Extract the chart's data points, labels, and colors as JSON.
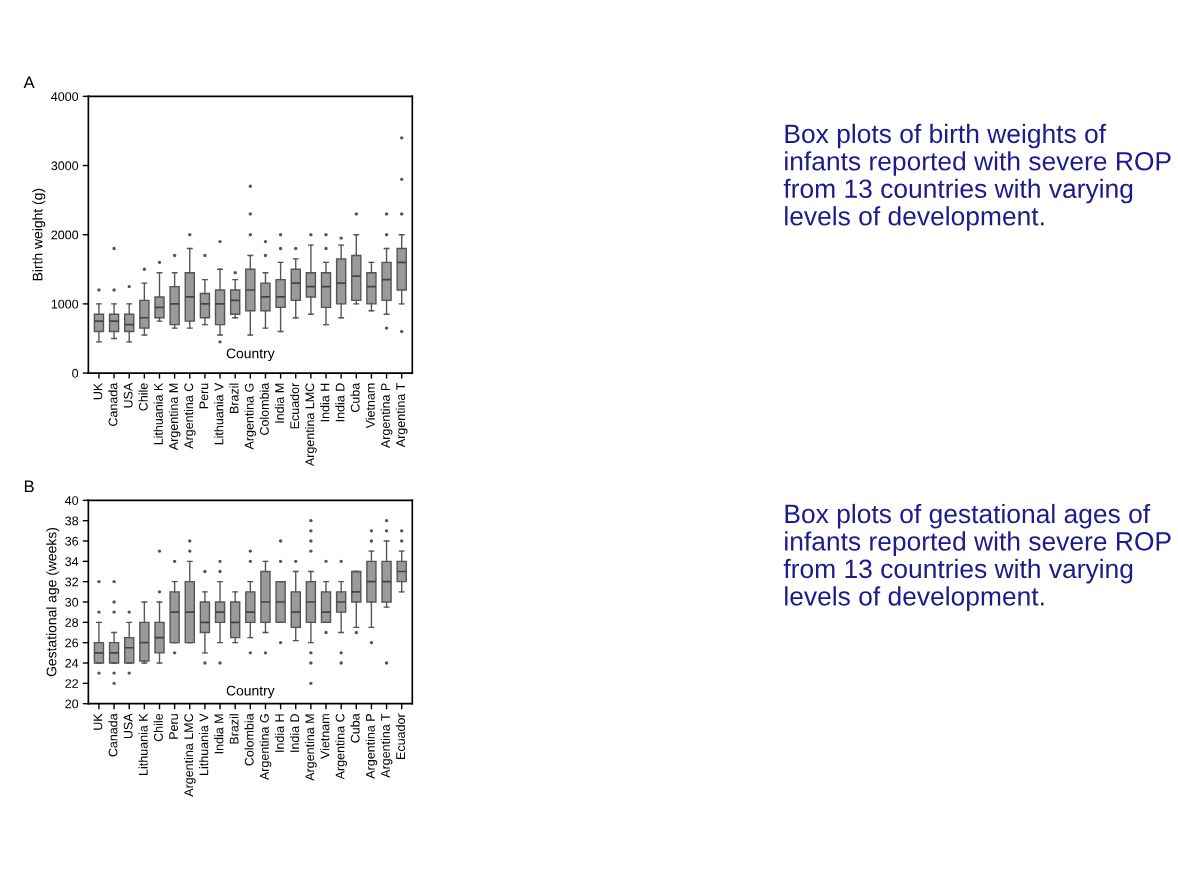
{
  "chart_data": [
    {
      "type": "box",
      "title": "A",
      "xlabel": "Country",
      "ylabel": "Birth weight (g)",
      "ylim": [
        0,
        4000
      ],
      "yticks": [
        0,
        1000,
        2000,
        3000,
        4000
      ],
      "categories": [
        "UK",
        "Canada",
        "USA",
        "Chile",
        "Lithuania K",
        "Argentina M",
        "Argentina C",
        "Peru",
        "Lithuania V",
        "Brazil",
        "Argentina G",
        "Colombia",
        "India M",
        "Ecuador",
        "Argentina LMC",
        "India H",
        "India D",
        "Cuba",
        "Vietnam",
        "Argentina P",
        "Argentina T"
      ],
      "series": [
        {
          "color": "#9a9a9a",
          "boxes": [
            {
              "low": 450,
              "q1": 600,
              "median": 750,
              "q3": 850,
              "high": 1000,
              "outliers": [
                1200
              ]
            },
            {
              "low": 500,
              "q1": 600,
              "median": 750,
              "q3": 850,
              "high": 1000,
              "outliers": [
                1200,
                1800
              ]
            },
            {
              "low": 450,
              "q1": 600,
              "median": 700,
              "q3": 850,
              "high": 1000,
              "outliers": [
                1250
              ]
            },
            {
              "low": 550,
              "q1": 650,
              "median": 800,
              "q3": 1050,
              "high": 1300,
              "outliers": [
                1500
              ]
            },
            {
              "low": 750,
              "q1": 800,
              "median": 950,
              "q3": 1100,
              "high": 1450,
              "outliers": [
                1600
              ]
            },
            {
              "low": 650,
              "q1": 700,
              "median": 1000,
              "q3": 1250,
              "high": 1450,
              "outliers": [
                1700
              ]
            },
            {
              "low": 650,
              "q1": 750,
              "median": 1100,
              "q3": 1450,
              "high": 1800,
              "outliers": [
                2000
              ]
            },
            {
              "low": 700,
              "q1": 800,
              "median": 1000,
              "q3": 1150,
              "high": 1350,
              "outliers": [
                1700
              ]
            },
            {
              "low": 550,
              "q1": 700,
              "median": 1000,
              "q3": 1200,
              "high": 1500,
              "outliers": [
                450,
                1900
              ]
            },
            {
              "low": 800,
              "q1": 850,
              "median": 1050,
              "q3": 1200,
              "high": 1350,
              "outliers": [
                1450
              ]
            },
            {
              "low": 550,
              "q1": 900,
              "median": 1200,
              "q3": 1500,
              "high": 1700,
              "outliers": [
                2000,
                2300,
                2700
              ]
            },
            {
              "low": 650,
              "q1": 900,
              "median": 1100,
              "q3": 1300,
              "high": 1450,
              "outliers": [
                1700,
                1900
              ]
            },
            {
              "low": 600,
              "q1": 950,
              "median": 1100,
              "q3": 1350,
              "high": 1600,
              "outliers": [
                1800,
                2000
              ]
            },
            {
              "low": 800,
              "q1": 1050,
              "median": 1300,
              "q3": 1500,
              "high": 1650,
              "outliers": [
                1800
              ]
            },
            {
              "low": 850,
              "q1": 1100,
              "median": 1250,
              "q3": 1450,
              "high": 1850,
              "outliers": [
                2000
              ]
            },
            {
              "low": 700,
              "q1": 950,
              "median": 1250,
              "q3": 1450,
              "high": 1600,
              "outliers": [
                1800,
                2000
              ]
            },
            {
              "low": 800,
              "q1": 1000,
              "median": 1300,
              "q3": 1650,
              "high": 1850,
              "outliers": [
                1950
              ]
            },
            {
              "low": 1000,
              "q1": 1050,
              "median": 1400,
              "q3": 1700,
              "high": 2000,
              "outliers": [
                2300
              ]
            },
            {
              "low": 900,
              "q1": 1000,
              "median": 1250,
              "q3": 1450,
              "high": 1600
            },
            {
              "low": 850,
              "q1": 1050,
              "median": 1350,
              "q3": 1600,
              "high": 1800,
              "outliers": [
                650,
                2000,
                2300
              ]
            },
            {
              "low": 1000,
              "q1": 1200,
              "median": 1600,
              "q3": 1800,
              "high": 2000,
              "outliers": [
                600,
                2300,
                2800,
                3400
              ]
            }
          ]
        }
      ],
      "annotations": [
        "Box plots of birth weights of infants reported with severe ROP from 13 countries with varying levels of development."
      ]
    },
    {
      "type": "box",
      "title": "B",
      "xlabel": "Country",
      "ylabel": "Gestational age (weeks)",
      "ylim": [
        20,
        40
      ],
      "yticks": [
        20,
        22,
        24,
        26,
        28,
        30,
        32,
        34,
        36,
        38,
        40
      ],
      "categories": [
        "UK",
        "Canada",
        "USA",
        "Lithuania K",
        "Chile",
        "Peru",
        "Argentina LMC",
        "Lithuania V",
        "India M",
        "Brazil",
        "Colombia",
        "Argentina G",
        "India H",
        "India D",
        "Argentina M",
        "Vietnam",
        "Argentina C",
        "Cuba",
        "Argentina P",
        "Argentina T",
        "Ecuador"
      ],
      "series": [
        {
          "color": "#9a9a9a",
          "boxes": [
            {
              "low": 24,
              "q1": 24,
              "median": 25,
              "q3": 26,
              "high": 28,
              "outliers": [
                23,
                29,
                32
              ]
            },
            {
              "low": 24,
              "q1": 24,
              "median": 25,
              "q3": 26,
              "high": 27,
              "outliers": [
                22,
                23,
                29,
                30,
                32
              ]
            },
            {
              "low": 24,
              "q1": 24,
              "median": 25.5,
              "q3": 26.5,
              "high": 28,
              "outliers": [
                23,
                29
              ]
            },
            {
              "low": 24,
              "q1": 24.2,
              "median": 26,
              "q3": 28,
              "high": 30
            },
            {
              "low": 24,
              "q1": 25,
              "median": 26.5,
              "q3": 28,
              "high": 30,
              "outliers": [
                31,
                35
              ]
            },
            {
              "low": 26,
              "q1": 26,
              "median": 29,
              "q3": 31,
              "high": 32,
              "outliers": [
                25,
                34
              ]
            },
            {
              "low": 26,
              "q1": 26,
              "median": 29,
              "q3": 32,
              "high": 34,
              "outliers": [
                35,
                36
              ]
            },
            {
              "low": 25,
              "q1": 27,
              "median": 28,
              "q3": 30,
              "high": 31,
              "outliers": [
                24,
                33
              ]
            },
            {
              "low": 26,
              "q1": 28,
              "median": 29,
              "q3": 30,
              "high": 32,
              "outliers": [
                24,
                33,
                34
              ]
            },
            {
              "low": 26,
              "q1": 26.5,
              "median": 28,
              "q3": 30,
              "high": 31
            },
            {
              "low": 26.5,
              "q1": 28,
              "median": 29,
              "q3": 31,
              "high": 32,
              "outliers": [
                25,
                34,
                35
              ]
            },
            {
              "low": 27,
              "q1": 28,
              "median": 30,
              "q3": 33,
              "high": 34,
              "outliers": [
                25
              ]
            },
            {
              "low": 28,
              "q1": 28,
              "median": 30,
              "q3": 32,
              "high": 32,
              "outliers": [
                26,
                34,
                36
              ]
            },
            {
              "low": 26.2,
              "q1": 27.5,
              "median": 29,
              "q3": 31,
              "high": 33,
              "outliers": [
                34
              ]
            },
            {
              "low": 26,
              "q1": 28,
              "median": 30,
              "q3": 32,
              "high": 33,
              "outliers": [
                22,
                24,
                25,
                35,
                36,
                37,
                38
              ]
            },
            {
              "low": 28,
              "q1": 28,
              "median": 29,
              "q3": 31,
              "high": 32,
              "outliers": [
                27,
                34
              ]
            },
            {
              "low": 27,
              "q1": 29,
              "median": 30,
              "q3": 31,
              "high": 32,
              "outliers": [
                24,
                25,
                34
              ]
            },
            {
              "low": 27.5,
              "q1": 30,
              "median": 31,
              "q3": 33,
              "high": 33,
              "outliers": [
                27
              ]
            },
            {
              "low": 27.5,
              "q1": 30,
              "median": 32,
              "q3": 34,
              "high": 35,
              "outliers": [
                26,
                36,
                37
              ]
            },
            {
              "low": 29.5,
              "q1": 30,
              "median": 32,
              "q3": 34,
              "high": 36,
              "outliers": [
                24,
                37,
                38
              ]
            },
            {
              "low": 31,
              "q1": 32,
              "median": 33,
              "q3": 34,
              "high": 35,
              "outliers": [
                36,
                37
              ]
            }
          ]
        }
      ],
      "annotations": [
        "Box plots of gestational ages of infants reported with severe ROP from 13 countries with varying levels of development."
      ]
    }
  ]
}
